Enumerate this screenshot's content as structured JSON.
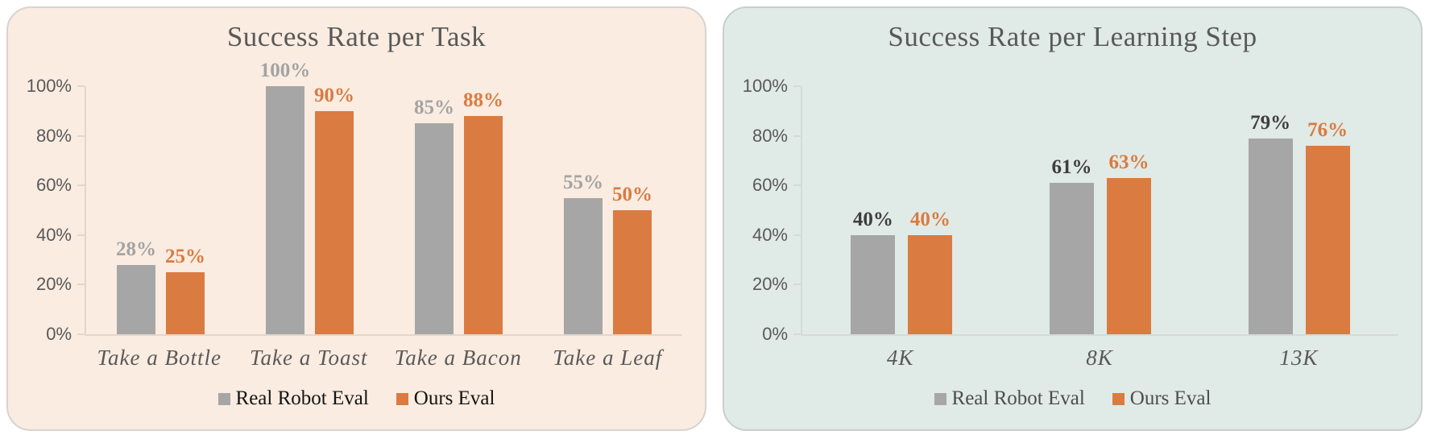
{
  "page": {
    "background": "#ffffff"
  },
  "chart_data": [
    {
      "type": "bar",
      "title": "Success Rate per Task",
      "background": "#faece1",
      "border_color": "#d9d3cd",
      "axis_color": "#e4d6cb",
      "title_color": "#595959",
      "legend_text_color": "#141414",
      "legend_position": "bottom",
      "grid": false,
      "ylim": [
        0,
        100
      ],
      "y_ticks": [
        {
          "value": 100,
          "label": "100%"
        },
        {
          "value": 80,
          "label": "80%"
        },
        {
          "value": 60,
          "label": "60%"
        },
        {
          "value": 40,
          "label": "40%"
        },
        {
          "value": 20,
          "label": "20%"
        },
        {
          "value": 0,
          "label": "0%"
        }
      ],
      "categories": [
        "Take a Bottle",
        "Take a Toast",
        "Take a Bacon",
        "Take a Leaf"
      ],
      "series": [
        {
          "name": "Real Robot Eval",
          "color": "#a6a6a6",
          "label_color": "#a3a3a3",
          "values": [
            28,
            100,
            85,
            55
          ],
          "labels": [
            "28%",
            "100%",
            "85%",
            "55%"
          ]
        },
        {
          "name": "Ours Eval",
          "color": "#da7b41",
          "label_color": "#da7b41",
          "values": [
            25,
            90,
            88,
            50
          ],
          "labels": [
            "25%",
            "90%",
            "88%",
            "50%"
          ]
        }
      ]
    },
    {
      "type": "bar",
      "title": "Success Rate per Learning Step",
      "background": "#e0eae7",
      "border_color": "#c9cfcd",
      "axis_color": "#d3dcd8",
      "title_color": "#595959",
      "legend_text_color": "#4d4d4d",
      "legend_position": "bottom",
      "grid": false,
      "ylim": [
        0,
        100
      ],
      "y_ticks": [
        {
          "value": 100,
          "label": "100%"
        },
        {
          "value": 80,
          "label": "80%"
        },
        {
          "value": 60,
          "label": "60%"
        },
        {
          "value": 40,
          "label": "40%"
        },
        {
          "value": 20,
          "label": "20%"
        },
        {
          "value": 0,
          "label": "0%"
        }
      ],
      "categories": [
        "4K",
        "8K",
        "13K"
      ],
      "series": [
        {
          "name": "Real Robot Eval",
          "color": "#a6a6a6",
          "label_color": "#3e3e3e",
          "values": [
            40,
            61,
            79
          ],
          "labels": [
            "40%",
            "61%",
            "79%"
          ]
        },
        {
          "name": "Ours Eval",
          "color": "#da7b41",
          "label_color": "#da7b41",
          "values": [
            40,
            63,
            76
          ],
          "labels": [
            "40%",
            "63%",
            "76%"
          ]
        }
      ]
    }
  ]
}
